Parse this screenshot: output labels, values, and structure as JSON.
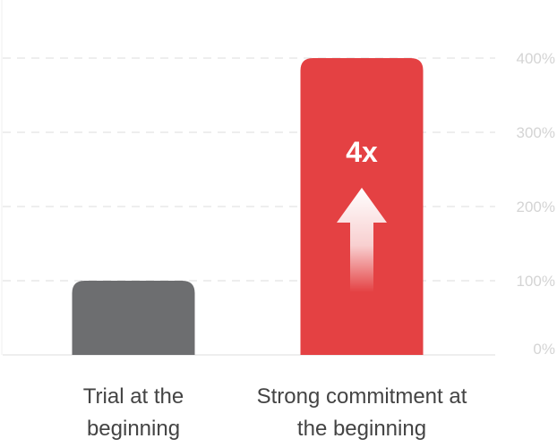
{
  "chart_data": {
    "type": "bar",
    "categories": [
      "Trial at the beginning",
      "Strong commitment at the beginning"
    ],
    "category_label_lines": [
      [
        "Trial at the",
        "beginning"
      ],
      [
        "Strong commitment at",
        "the beginning"
      ]
    ],
    "values": [
      100,
      400
    ],
    "bar_colors": [
      "#6d6e70",
      "#e44143"
    ],
    "ylim": [
      0,
      400
    ],
    "yticks": [
      0,
      100,
      200,
      300,
      400
    ],
    "ytick_labels": [
      "0%",
      "100%",
      "200%",
      "300%",
      "400%"
    ],
    "y_axis_side": "right",
    "grid": "horizontal dashed",
    "annotation": {
      "text": "4x",
      "icon": "up-arrow-icon"
    },
    "colors": {
      "grid": "#dcdcdc",
      "tick_label": "#d4d4d4",
      "category_label": "#444444",
      "annotation_text": "#ffffff"
    }
  }
}
